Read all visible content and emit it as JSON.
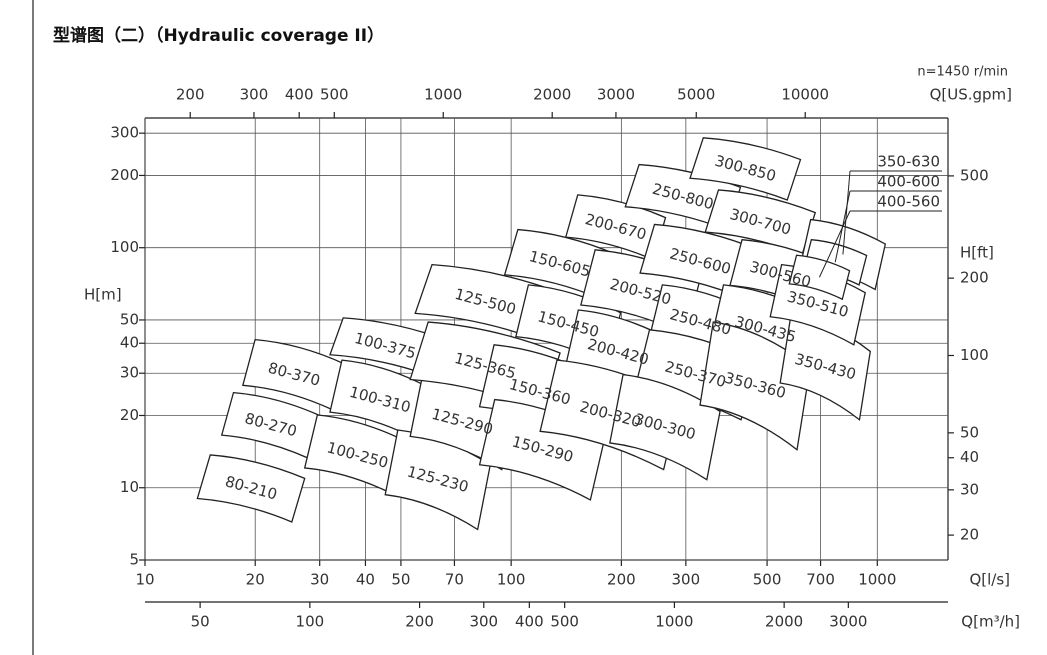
{
  "chart_data": {
    "type": "coverage",
    "title": "型谱图（二）（Hydraulic coverage II）",
    "annotation": "n=1450 r/min",
    "xlabel": "Q[l/s]",
    "ylabel": "H[m]",
    "x2label": "Q[US.gpm]",
    "x3label": "Q[m³/h]",
    "y2label": "H[ft]",
    "log_scale": true,
    "grid": true,
    "color": "#222222",
    "xlim": [
      10,
      1560
    ],
    "ylim": [
      5,
      347
    ],
    "xticks": [
      10,
      20,
      30,
      40,
      50,
      70,
      100,
      200,
      300,
      500,
      700,
      1000
    ],
    "yticks": [
      5,
      10,
      20,
      30,
      40,
      50,
      100,
      200,
      300
    ],
    "x2lim": [
      150,
      24800
    ],
    "x2ticks": [
      200,
      300,
      400,
      500,
      1000,
      2000,
      3000,
      5000,
      10000
    ],
    "x3lim": [
      35.3,
      5630
    ],
    "x3ticks": [
      50,
      100,
      200,
      300,
      400,
      500,
      1000,
      2000,
      3000
    ],
    "y2lim": [
      16,
      840
    ],
    "y2ticks": [
      20,
      30,
      40,
      50,
      100,
      200,
      500
    ],
    "regions": [
      {
        "name": "80-210",
        "q": [
          13.9,
          27.3
        ],
        "h": [
          7.2,
          13.7
        ]
      },
      {
        "name": "80-270",
        "q": [
          16.2,
          30
        ],
        "h": [
          13.3,
          24.9
        ]
      },
      {
        "name": "80-370",
        "q": [
          18.5,
          35.2
        ],
        "h": [
          21.1,
          41.4
        ]
      },
      {
        "name": "100-375",
        "q": [
          32,
          64
        ],
        "h": [
          29.6,
          51
        ]
      },
      {
        "name": "100-310",
        "q": [
          32,
          60
        ],
        "h": [
          15.8,
          34
        ]
      },
      {
        "name": "100-250",
        "q": [
          27.3,
          53
        ],
        "h": [
          9.2,
          20.1
        ]
      },
      {
        "name": "125-230",
        "q": [
          45.3,
          87.7
        ],
        "h": [
          6.7,
          17.4
        ]
      },
      {
        "name": "125-290",
        "q": [
          53,
          102
        ],
        "h": [
          11.9,
          29.6
        ]
      },
      {
        "name": "125-365",
        "q": [
          53,
          136
        ],
        "h": [
          21,
          49
        ]
      },
      {
        "name": "125-500",
        "q": [
          54.7,
          132
        ],
        "h": [
          41.4,
          85
        ]
      },
      {
        "name": "150-360",
        "q": [
          82,
          175
        ],
        "h": [
          15.8,
          39.4
        ]
      },
      {
        "name": "150-290",
        "q": [
          82,
          181
        ],
        "h": [
          8.9,
          23.3
        ]
      },
      {
        "name": "150-450",
        "q": [
          103,
          199
        ],
        "h": [
          32.6,
          70
        ]
      },
      {
        "name": "150-605",
        "q": [
          96,
          192
        ],
        "h": [
          61,
          119
        ]
      },
      {
        "name": "200-670",
        "q": [
          141,
          264
        ],
        "h": [
          89,
          166
        ]
      },
      {
        "name": "200-520",
        "q": [
          155,
          328
        ],
        "h": [
          43.4,
          98
        ]
      },
      {
        "name": "200-420",
        "q": [
          141,
          272
        ],
        "h": [
          24.4,
          55
        ]
      },
      {
        "name": "200-320",
        "q": [
          120,
          290
        ],
        "h": [
          11.9,
          34
        ]
      },
      {
        "name": "250-800",
        "q": [
          205,
          423
        ],
        "h": [
          119,
          222
        ]
      },
      {
        "name": "250-600",
        "q": [
          225,
          479
        ],
        "h": [
          61,
          125
        ]
      },
      {
        "name": "250-480",
        "q": [
          240,
          450
        ],
        "h": [
          34,
          70
        ]
      },
      {
        "name": "250-370",
        "q": [
          218,
          465
        ],
        "h": [
          19.2,
          45.5
        ]
      },
      {
        "name": "300-300",
        "q": [
          186,
          372
        ],
        "h": [
          10.8,
          29.6
        ]
      },
      {
        "name": "300-850",
        "q": [
          308,
          617
        ],
        "h": [
          158,
          287
        ]
      },
      {
        "name": "300-700",
        "q": [
          339,
          677
        ],
        "h": [
          93.5,
          174
        ]
      },
      {
        "name": "300-560",
        "q": [
          396,
          745
        ],
        "h": [
          55,
          108
        ]
      },
      {
        "name": "300-435",
        "q": [
          350,
          698
        ],
        "h": [
          29.6,
          70
        ]
      },
      {
        "name": "350-360",
        "q": [
          328,
          656
        ],
        "h": [
          14.4,
          49
        ]
      },
      {
        "name": "350-430",
        "q": [
          543,
          957
        ],
        "h": [
          19.2,
          52.6
        ]
      },
      {
        "name": "350-510",
        "q": [
          510,
          927
        ],
        "h": [
          39.4,
          85
        ]
      }
    ],
    "callout_regions": [
      {
        "name": "350-630",
        "q": [
          617,
          1052
        ],
        "h": [
          67,
          131
        ]
      },
      {
        "name": "400-600",
        "q": [
          630,
          935
        ],
        "h": [
          70,
          108
        ]
      },
      {
        "name": "400-560",
        "q": [
          575,
          840
        ],
        "h": [
          61,
          93
        ]
      }
    ]
  }
}
